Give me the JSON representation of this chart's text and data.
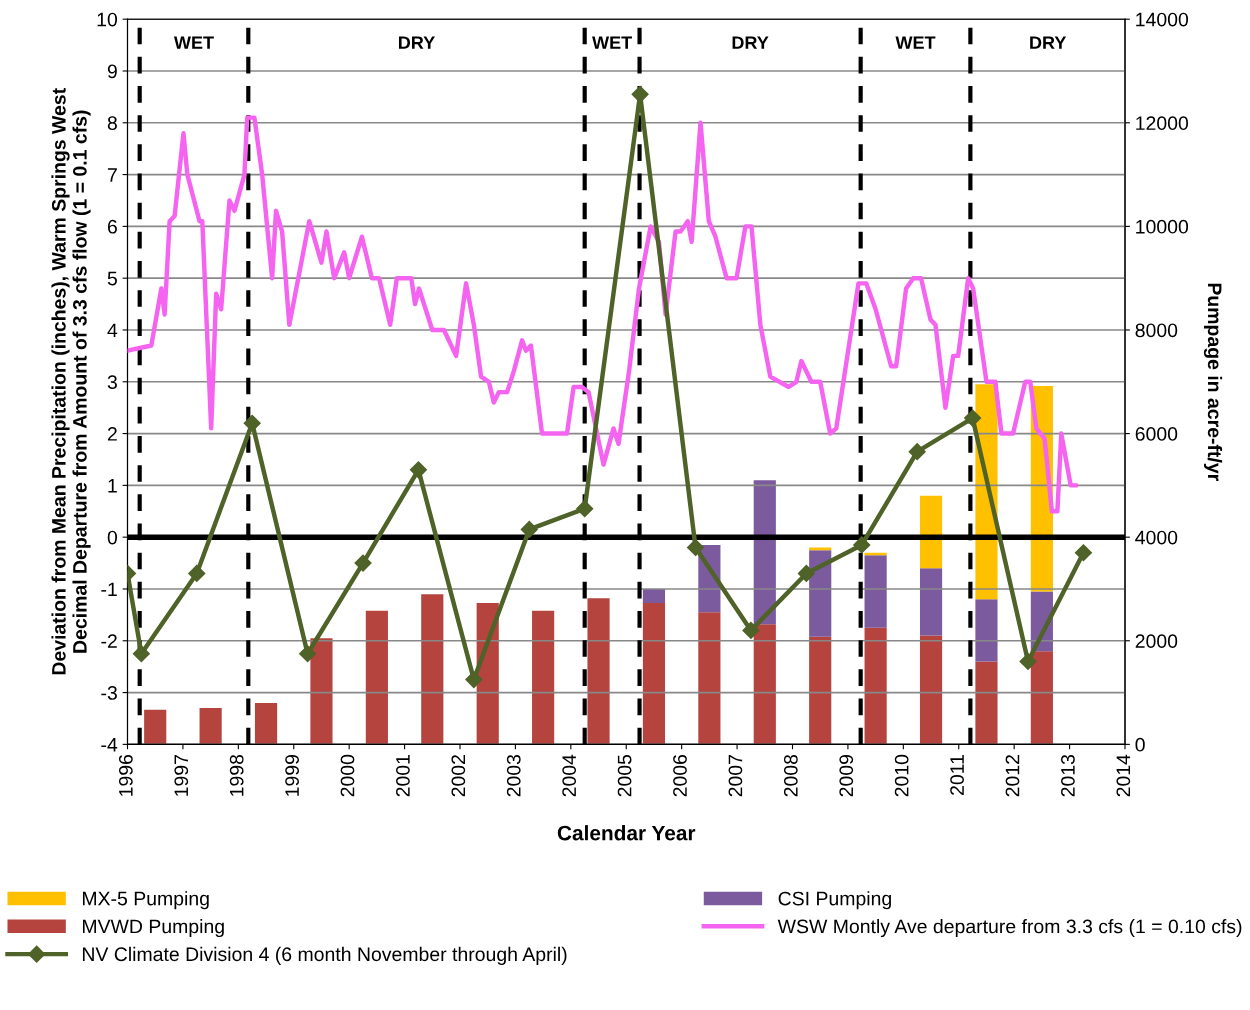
{
  "chart_data": {
    "type": "bar",
    "xlabel": "Calendar Year",
    "ylabel": "Deviation from Mean Precipitation (inches), Warm Springs West\nDecimal Departure from Amount of 3.3 cfs flow (1 = 0.1 cfs)",
    "y2label": "Pumpage in acre-ft/yr",
    "xlim": [
      1996,
      2014
    ],
    "xticks": [
      1996,
      1997,
      1998,
      1999,
      2000,
      2001,
      2002,
      2003,
      2004,
      2005,
      2006,
      2007,
      2008,
      2009,
      2010,
      2011,
      2012,
      2013,
      2014
    ],
    "ylim": [
      -4,
      10
    ],
    "yticks": [
      -4,
      -3,
      -2,
      -1,
      0,
      1,
      2,
      3,
      4,
      5,
      6,
      7,
      8,
      9,
      10
    ],
    "y2lim": [
      0,
      14000
    ],
    "y2ticks": [
      0,
      2000,
      4000,
      6000,
      8000,
      10000,
      12000,
      14000
    ],
    "stacked": true,
    "grid": "y",
    "legend": "bottom",
    "series": [
      {
        "name": "MVWD Pumping",
        "axis": "y2",
        "color": "#b5443f",
        "x": [
          1996.5,
          1997.5,
          1998.5,
          1999.5,
          2000.5,
          2001.5,
          2002.5,
          2003.5,
          2004.5,
          2005.5,
          2006.5,
          2007.5,
          2008.5,
          2009.5,
          2010.5,
          2011.5,
          2012.5
        ],
        "values": [
          670,
          700,
          800,
          2050,
          2580,
          2900,
          2730,
          2580,
          2820,
          2730,
          2550,
          2320,
          2080,
          2250,
          2100,
          1600,
          1800
        ]
      },
      {
        "name": "CSI Pumping",
        "axis": "y2",
        "color": "#7b5a9e",
        "x": [
          1996.5,
          1997.5,
          1998.5,
          1999.5,
          2000.5,
          2001.5,
          2002.5,
          2003.5,
          2004.5,
          2005.5,
          2006.5,
          2007.5,
          2008.5,
          2009.5,
          2010.5,
          2011.5,
          2012.5
        ],
        "values": [
          0,
          0,
          0,
          0,
          0,
          0,
          0,
          0,
          0,
          270,
          1300,
          2780,
          1670,
          1400,
          1300,
          1200,
          1150
        ]
      },
      {
        "name": "MX-5 Pumping",
        "axis": "y2",
        "color": "#ffc000",
        "x": [
          1996.5,
          1997.5,
          1998.5,
          1999.5,
          2000.5,
          2001.5,
          2002.5,
          2003.5,
          2004.5,
          2005.5,
          2006.5,
          2007.5,
          2008.5,
          2009.5,
          2010.5,
          2011.5,
          2012.5
        ],
        "values": [
          0,
          0,
          0,
          0,
          0,
          0,
          0,
          0,
          0,
          0,
          0,
          0,
          50,
          50,
          1400,
          4150,
          3970
        ]
      },
      {
        "name": "WSW Montly Ave departure from 3.3 cfs (1 = 0.10 cfs)",
        "type": "line",
        "marker": "none",
        "color": "#f564f0",
        "x": [
          1996.0,
          1996.43,
          1996.61,
          1996.67,
          1996.76,
          1996.85,
          1997.01,
          1997.08,
          1997.3,
          1997.35,
          1997.51,
          1997.6,
          1997.69,
          1997.84,
          1997.93,
          1998.11,
          1998.16,
          1998.29,
          1998.43,
          1998.61,
          1998.68,
          1998.79,
          1998.92,
          1999.28,
          1999.5,
          1999.59,
          1999.73,
          1999.91,
          2000.0,
          2000.23,
          2000.41,
          2000.54,
          2000.74,
          2000.86,
          2001.12,
          2001.19,
          2001.26,
          2001.5,
          2001.71,
          2001.93,
          2002.11,
          2002.25,
          2002.38,
          2002.52,
          2002.61,
          2002.7,
          2002.85,
          2002.97,
          2003.12,
          2003.19,
          2003.28,
          2003.48,
          2003.93,
          2004.05,
          2004.2,
          2004.32,
          2004.59,
          2004.77,
          2004.86,
          2005.05,
          2005.23,
          2005.44,
          2005.59,
          2005.71,
          2005.89,
          2005.98,
          2006.11,
          2006.18,
          2006.34,
          2006.49,
          2006.61,
          2006.81,
          2006.99,
          2007.15,
          2007.26,
          2007.42,
          2007.6,
          2007.93,
          2008.07,
          2008.16,
          2008.34,
          2008.5,
          2008.68,
          2008.79,
          2009.19,
          2009.33,
          2009.5,
          2009.78,
          2009.87,
          2010.05,
          2010.18,
          2010.32,
          2010.49,
          2010.58,
          2010.76,
          2010.9,
          2010.99,
          2011.17,
          2011.26,
          2011.5,
          2011.66,
          2011.77,
          2011.98,
          2012.2,
          2012.29,
          2012.4,
          2012.55,
          2012.68,
          2012.78,
          2012.85,
          2013.02,
          2013.11
        ],
        "values": [
          3.6,
          3.7,
          4.8,
          4.3,
          6.1,
          6.2,
          7.8,
          7.0,
          6.1,
          6.1,
          2.1,
          4.7,
          4.4,
          6.5,
          6.3,
          7.0,
          8.1,
          8.1,
          7.0,
          5.0,
          6.3,
          5.9,
          4.1,
          6.1,
          5.3,
          5.9,
          5.0,
          5.5,
          5.0,
          5.8,
          5.0,
          5.0,
          4.1,
          5.0,
          5.0,
          4.5,
          4.8,
          4.0,
          4.0,
          3.5,
          4.9,
          4.1,
          3.1,
          3.0,
          2.6,
          2.8,
          2.8,
          3.2,
          3.8,
          3.6,
          3.7,
          2.0,
          2.0,
          2.9,
          2.9,
          2.8,
          1.4,
          2.1,
          1.8,
          3.2,
          4.8,
          6.0,
          5.7,
          4.3,
          5.9,
          5.9,
          6.1,
          5.7,
          8.0,
          6.1,
          5.8,
          5.0,
          5.0,
          6.0,
          6.0,
          4.1,
          3.1,
          2.9,
          3.0,
          3.4,
          3.0,
          3.0,
          2.0,
          2.1,
          4.9,
          4.9,
          4.4,
          3.3,
          3.3,
          4.8,
          5.0,
          5.0,
          4.2,
          4.1,
          2.5,
          3.5,
          3.5,
          5.0,
          4.8,
          3.0,
          3.0,
          2.0,
          2.0,
          3.0,
          3.0,
          2.1,
          1.9,
          0.5,
          0.5,
          2.0,
          1.0,
          1.0
        ]
      },
      {
        "name": "NV Climate Division 4 (6 month November through April)",
        "type": "line",
        "marker": "diamond",
        "color": "#4f6228",
        "x": [
          1996.0,
          1996.25,
          1997.25,
          1998.25,
          1999.25,
          2000.25,
          2001.25,
          2002.25,
          2003.25,
          2004.25,
          2005.25,
          2006.25,
          2007.25,
          2008.25,
          2009.25,
          2010.25,
          2011.25,
          2012.25,
          2013.25
        ],
        "values": [
          -0.7,
          -2.25,
          -0.7,
          2.2,
          -2.25,
          -0.5,
          1.3,
          -2.75,
          0.15,
          0.55,
          8.55,
          -0.2,
          -1.8,
          -0.7,
          -0.15,
          1.65,
          2.3,
          -2.4,
          -0.3
        ]
      }
    ],
    "ref_lines": [
      {
        "axis": "y",
        "value": 0,
        "color": "#000000",
        "line_style": "solid"
      },
      {
        "axis": "x",
        "value": 1996.22,
        "color": "#000000",
        "line_style": "dashed"
      },
      {
        "axis": "x",
        "value": 1998.18,
        "color": "#000000",
        "line_style": "dashed"
      },
      {
        "axis": "x",
        "value": 2004.25,
        "color": "#000000",
        "line_style": "dashed"
      },
      {
        "axis": "x",
        "value": 2005.24,
        "color": "#000000",
        "line_style": "dashed"
      },
      {
        "axis": "x",
        "value": 2009.23,
        "color": "#000000",
        "line_style": "dashed"
      },
      {
        "axis": "x",
        "value": 2011.21,
        "color": "#000000",
        "line_style": "dashed"
      }
    ],
    "annotations": [
      "WET",
      "DRY",
      "WET",
      "DRY",
      "WET",
      "DRY"
    ]
  }
}
